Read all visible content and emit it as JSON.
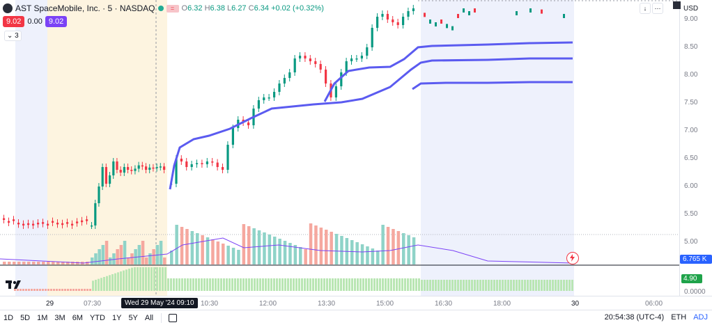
{
  "header": {
    "symbol_title": "AST SpaceMobile, Inc. · 5 · NASDAQ",
    "ohlc": {
      "open_label": "O",
      "open": "6.32",
      "high_label": "H",
      "high": "6.38",
      "low_label": "L",
      "low": "6.27",
      "close_label": "C",
      "close": "6.34",
      "change": "+0.02 (+0.32%)"
    },
    "flag_badge": "=",
    "bid": "9.02",
    "spread": "0.00",
    "ask": "9.02",
    "indicator_count": "3"
  },
  "price_scale": {
    "currency": "USD",
    "ticks": [
      "9.00",
      "8.50",
      "8.00",
      "7.50",
      "7.00",
      "6.50",
      "6.00",
      "5.50",
      "5.00",
      "0.0000"
    ],
    "current_price_label": "6.765 K",
    "volume_label": "4.90"
  },
  "time_axis": {
    "ticks": [
      "29",
      "07:30",
      "10:30",
      "12:00",
      "13:30",
      "15:00",
      "16:30",
      "18:00",
      "30",
      "06:00"
    ],
    "crosshair_label": "Wed 29 May '24   09:10"
  },
  "bottom_bar": {
    "ranges": [
      "1D",
      "5D",
      "1M",
      "3M",
      "6M",
      "YTD",
      "1Y",
      "5Y",
      "All"
    ],
    "clock": "20:54:38 (UTC-4)",
    "session": "ETH",
    "adjustment": "ADJ"
  },
  "colors": {
    "up": "#089981",
    "down": "#f23645",
    "vwap": "#5b5bf0",
    "premarket_bg": "#fdf4e0",
    "postmarket_bg": "#eef1fc",
    "volume_up": "#8fd3c8",
    "volume_down": "#f5a89f",
    "lower_pane_bar": "#b9e6b3",
    "bid_box": "#f23645",
    "ask_box": "#7b42f6"
  },
  "icons": [
    "chevron-down-icon",
    "more-icon",
    "fullscreen-icon",
    "calendar-icon",
    "tradingview-logo",
    "bolt-icon"
  ],
  "chart_data": {
    "type": "candlestick",
    "price_ylim": [
      4.8,
      9.3
    ],
    "regular_session_price_path": [
      6.05,
      6.5,
      6.45,
      6.35,
      6.4,
      6.42,
      6.4,
      6.45,
      6.43,
      6.35,
      6.3,
      6.75,
      7.05,
      7.2,
      7.15,
      7.1,
      7.4,
      7.55,
      7.6,
      7.6,
      7.7,
      7.85,
      7.95,
      8.05,
      8.3,
      8.35,
      8.3,
      8.25,
      8.2,
      8.1,
      7.85,
      7.6,
      7.8,
      8.05,
      8.25,
      8.3,
      8.3,
      8.35,
      8.5,
      8.85,
      9.05,
      9.1,
      9.0,
      8.95,
      8.9,
      9.05,
      9.15,
      9.2
    ],
    "vwap_line": [
      6.65,
      6.7,
      6.75,
      6.95,
      7.05,
      7.3,
      7.45,
      7.5,
      7.55,
      7.6,
      7.9,
      8.25,
      8.6,
      8.6,
      8.6
    ],
    "vwap_lower_band": [
      5.9,
      6.25,
      6.4,
      6.6,
      6.75,
      7.05,
      7.3,
      7.4,
      7.5,
      7.55,
      7.6,
      7.85,
      7.88,
      7.88
    ]
  }
}
